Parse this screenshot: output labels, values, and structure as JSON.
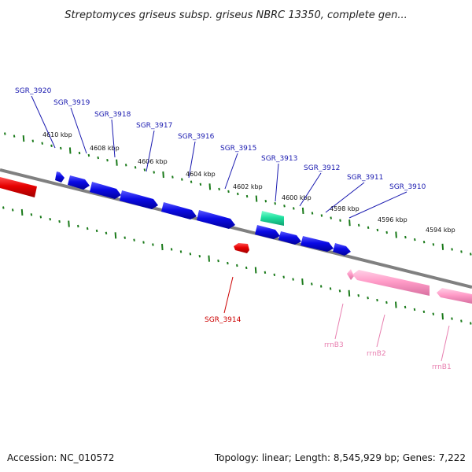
{
  "title": "Streptomyces griseus subsp. griseus NBRC 13350, complete gen...",
  "footer": {
    "accession": "Accession: NC_010572",
    "topology": "Topology: linear; Length: 8,545,929 bp; Genes: 7,222"
  },
  "colors": {
    "forward_gene": "#0b0be6",
    "reverse_gene": "#e60000",
    "rna_gene": "#ff9cc8",
    "other_gene": "#20e0a0",
    "forward_label": "#1a1ab0",
    "reverse_label": "#cc0000",
    "rna_label": "#e880b0",
    "axis": "#808080",
    "tick": "#1a7a1a"
  },
  "scale_labels": [
    "4610 kbp",
    "4608 kbp",
    "4606 kbp",
    "4604 kbp",
    "4602 kbp",
    "4600 kbp",
    "4598 kbp",
    "4596 kbp",
    "4594 kbp"
  ],
  "gene_labels": {
    "forward": [
      "SGR_3920",
      "SGR_3919",
      "SGR_3918",
      "SGR_3917",
      "SGR_3916",
      "SGR_3915",
      "SGR_3913",
      "SGR_3912",
      "SGR_3911",
      "SGR_3910"
    ],
    "reverse": [
      "SGR_3914"
    ],
    "rna": [
      "rrnB3",
      "rrnB2",
      "rrnB1"
    ]
  }
}
